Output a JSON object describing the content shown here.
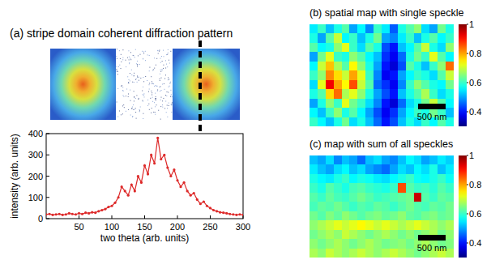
{
  "chart_data": [
    {
      "type": "line",
      "title": "(a) stripe domain coherent diffraction pattern",
      "x_label": "two theta (arb. units)",
      "y_label": "intensity (arb. units)",
      "x": [
        0,
        5,
        10,
        15,
        20,
        25,
        30,
        35,
        40,
        45,
        50,
        55,
        60,
        65,
        70,
        75,
        80,
        85,
        90,
        95,
        100,
        105,
        110,
        115,
        120,
        125,
        130,
        135,
        140,
        145,
        150,
        155,
        160,
        165,
        170,
        175,
        180,
        185,
        190,
        195,
        200,
        205,
        210,
        215,
        220,
        225,
        230,
        235,
        240,
        245,
        250,
        255,
        260,
        265,
        270,
        275,
        280,
        285,
        290,
        295,
        300
      ],
      "values": [
        20,
        22,
        18,
        20,
        22,
        18,
        20,
        25,
        22,
        20,
        25,
        22,
        28,
        25,
        30,
        28,
        35,
        40,
        45,
        55,
        60,
        75,
        100,
        150,
        130,
        110,
        160,
        130,
        200,
        170,
        250,
        210,
        300,
        260,
        380,
        280,
        300,
        240,
        200,
        230,
        180,
        150,
        170,
        130,
        110,
        120,
        90,
        70,
        80,
        60,
        50,
        40,
        35,
        30,
        28,
        25,
        22,
        20,
        18,
        20,
        18
      ],
      "color": "#dd2a2a",
      "marker": "dot",
      "xlim": [
        0,
        300
      ],
      "ylim": [
        0,
        400
      ],
      "xticks": [
        50,
        100,
        150,
        200,
        250,
        300
      ],
      "yticks": [
        0,
        100,
        200,
        300,
        400
      ]
    },
    {
      "type": "heatmap",
      "title": "(b) spatial map with single speckle",
      "scale_bar_label": "500 nm",
      "color_range": [
        0.3,
        1
      ],
      "color_ticks": [
        0.4,
        0.6,
        0.8,
        1
      ],
      "cells": [
        [
          0.55,
          0.6,
          0.52,
          0.58,
          0.62,
          0.5,
          0.56,
          0.48,
          0.6,
          0.55,
          0.45,
          0.58,
          0.62,
          0.66,
          0.54,
          0.5,
          0.64,
          0.58
        ],
        [
          0.58,
          0.5,
          0.62,
          0.7,
          0.56,
          0.6,
          0.52,
          0.58,
          0.64,
          0.5,
          0.48,
          0.55,
          0.6,
          0.52,
          0.58,
          0.62,
          0.56,
          0.6
        ],
        [
          0.62,
          0.56,
          0.58,
          0.66,
          0.72,
          0.6,
          0.54,
          0.62,
          0.58,
          0.44,
          0.4,
          0.52,
          0.56,
          0.62,
          0.7,
          0.58,
          0.54,
          0.66
        ],
        [
          0.5,
          0.64,
          0.72,
          0.6,
          0.58,
          0.66,
          0.62,
          0.56,
          0.52,
          0.42,
          0.38,
          0.46,
          0.58,
          0.64,
          0.6,
          0.72,
          0.62,
          0.56
        ],
        [
          0.56,
          0.7,
          0.78,
          0.68,
          0.62,
          0.74,
          0.66,
          0.58,
          0.5,
          0.4,
          0.36,
          0.44,
          0.62,
          0.58,
          0.52,
          0.6,
          0.66,
          0.84
        ],
        [
          0.6,
          0.66,
          0.82,
          0.76,
          0.7,
          0.8,
          0.72,
          0.6,
          0.48,
          0.38,
          0.4,
          0.5,
          0.56,
          0.6,
          0.58,
          0.54,
          0.62,
          0.7
        ],
        [
          0.54,
          0.72,
          0.92,
          0.8,
          0.74,
          0.86,
          0.7,
          0.62,
          0.46,
          0.42,
          0.38,
          0.48,
          0.6,
          0.66,
          0.62,
          0.58,
          0.56,
          0.64
        ],
        [
          0.58,
          0.62,
          0.76,
          0.84,
          0.68,
          0.72,
          0.66,
          0.58,
          0.5,
          0.44,
          0.4,
          0.52,
          0.58,
          0.62,
          0.68,
          0.6,
          0.54,
          0.58
        ],
        [
          0.5,
          0.58,
          0.66,
          0.6,
          0.72,
          0.64,
          0.6,
          0.54,
          0.48,
          0.4,
          0.36,
          0.46,
          0.54,
          0.58,
          0.64,
          0.7,
          0.62,
          0.56
        ],
        [
          0.56,
          0.52,
          0.6,
          0.66,
          0.58,
          0.62,
          0.56,
          0.5,
          0.44,
          0.38,
          0.42,
          0.5,
          0.56,
          0.6,
          0.58,
          0.64,
          0.6,
          0.52
        ],
        [
          0.6,
          0.56,
          0.52,
          0.58,
          0.64,
          0.54,
          0.58,
          0.52,
          0.46,
          0.4,
          0.44,
          0.52,
          0.58,
          0.54,
          0.6,
          0.56,
          0.62,
          0.58
        ]
      ]
    },
    {
      "type": "heatmap",
      "title": "(c) map with sum of all speckles",
      "scale_bar_label": "500 nm",
      "color_range": [
        0.3,
        1
      ],
      "color_ticks": [
        0.4,
        0.6,
        0.8,
        1
      ],
      "cells": [
        [
          0.52,
          0.5,
          0.54,
          0.48,
          0.52,
          0.5,
          0.46,
          0.52,
          0.54,
          0.5,
          0.48,
          0.52,
          0.56,
          0.54,
          0.5,
          0.52,
          0.55,
          0.53
        ],
        [
          0.55,
          0.52,
          0.5,
          0.54,
          0.56,
          0.52,
          0.54,
          0.5,
          0.48,
          0.46,
          0.5,
          0.54,
          0.52,
          0.56,
          0.54,
          0.58,
          0.52,
          0.55
        ],
        [
          0.58,
          0.56,
          0.55,
          0.58,
          0.6,
          0.56,
          0.58,
          0.57,
          0.55,
          0.54,
          0.56,
          0.58,
          0.6,
          0.57,
          0.56,
          0.58,
          0.6,
          0.57
        ],
        [
          0.6,
          0.58,
          0.62,
          0.6,
          0.58,
          0.61,
          0.62,
          0.6,
          0.59,
          0.58,
          0.6,
          0.86,
          0.62,
          0.6,
          0.61,
          0.59,
          0.62,
          0.6
        ],
        [
          0.62,
          0.6,
          0.63,
          0.61,
          0.6,
          0.62,
          0.64,
          0.62,
          0.6,
          0.61,
          0.62,
          0.63,
          0.64,
          0.95,
          0.62,
          0.6,
          0.63,
          0.62
        ],
        [
          0.61,
          0.63,
          0.62,
          0.64,
          0.62,
          0.6,
          0.62,
          0.61,
          0.63,
          0.62,
          0.6,
          0.62,
          0.64,
          0.62,
          0.61,
          0.63,
          0.62,
          0.64
        ],
        [
          0.64,
          0.62,
          0.65,
          0.63,
          0.66,
          0.64,
          0.62,
          0.64,
          0.65,
          0.63,
          0.64,
          0.66,
          0.63,
          0.62,
          0.64,
          0.65,
          0.63,
          0.64
        ],
        [
          0.66,
          0.68,
          0.7,
          0.72,
          0.7,
          0.72,
          0.74,
          0.72,
          0.7,
          0.72,
          0.7,
          0.68,
          0.7,
          0.72,
          0.7,
          0.68,
          0.66,
          0.68
        ],
        [
          0.64,
          0.66,
          0.68,
          0.66,
          0.7,
          0.68,
          0.66,
          0.64,
          0.66,
          0.68,
          0.66,
          0.64,
          0.66,
          0.64,
          0.66,
          0.68,
          0.64,
          0.66
        ],
        [
          0.66,
          0.64,
          0.66,
          0.68,
          0.66,
          0.64,
          0.66,
          0.68,
          0.66,
          0.64,
          0.65,
          0.66,
          0.64,
          0.66,
          0.68,
          0.66,
          0.64,
          0.65
        ],
        [
          0.68,
          0.66,
          0.7,
          0.68,
          0.66,
          0.68,
          0.7,
          0.68,
          0.66,
          0.68,
          0.7,
          0.68,
          0.66,
          0.64,
          0.66,
          0.68,
          0.7,
          0.68
        ]
      ]
    }
  ]
}
